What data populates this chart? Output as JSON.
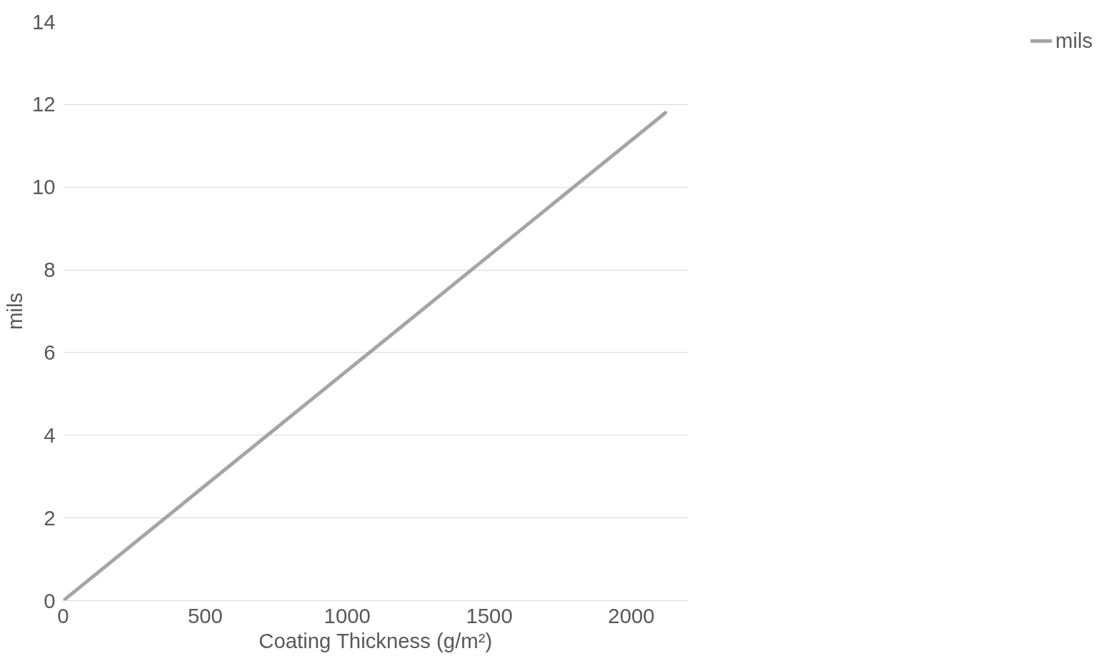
{
  "chart_data": {
    "type": "line",
    "xlabel": "Coating Thickness (g/m²)",
    "ylabel": "mils",
    "xlim": [
      0,
      2200
    ],
    "xticks": [
      0,
      500,
      1000,
      1500,
      2000
    ],
    "ylim": [
      0,
      14
    ],
    "yticks": [
      0,
      2,
      4,
      6,
      8,
      10,
      12,
      14
    ],
    "series": [
      {
        "name": "mils",
        "color": "#a5a5a5",
        "x": [
          0,
          2120
        ],
        "values": [
          0,
          11.8
        ]
      }
    ],
    "grid": "y",
    "legend": "right",
    "marker": "none",
    "line_style": "solid"
  }
}
